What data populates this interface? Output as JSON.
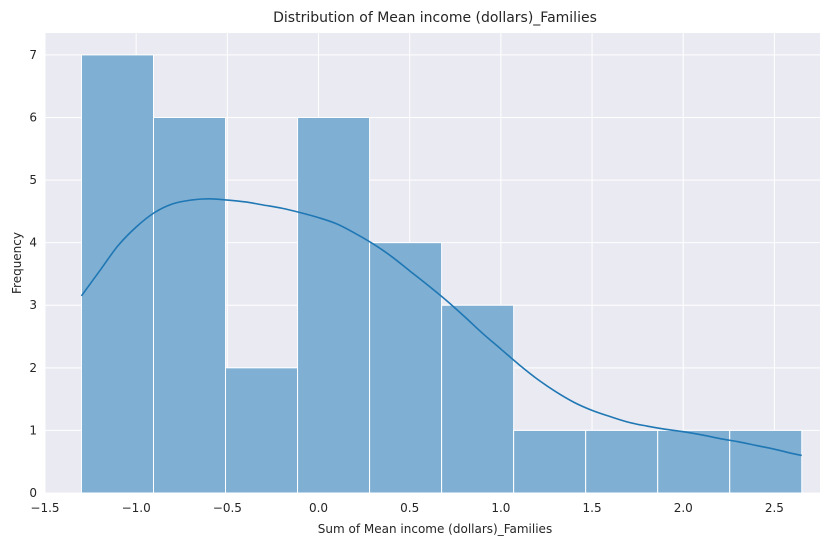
{
  "chart_data": {
    "type": "histogram",
    "title": "Distribution of Mean income (dollars)_Families",
    "xlabel": "Sum of Mean income (dollars)_Families",
    "ylabel": "Frequency",
    "xlim": [
      -1.5,
      2.75
    ],
    "ylim": [
      0,
      7.35
    ],
    "x_ticks": [
      -1.5,
      -1.0,
      -0.5,
      0.0,
      0.5,
      1.0,
      1.5,
      2.0,
      2.5
    ],
    "x_tick_labels": [
      "−1.5",
      "−1.0",
      "−0.5",
      "0.0",
      "0.5",
      "1.0",
      "1.5",
      "2.0",
      "2.5"
    ],
    "y_ticks": [
      0,
      1,
      2,
      3,
      4,
      5,
      6,
      7
    ],
    "y_tick_labels": [
      "0",
      "1",
      "2",
      "3",
      "4",
      "5",
      "6",
      "7"
    ],
    "bin_edges": [
      -1.3,
      -0.905,
      -0.51,
      -0.115,
      0.28,
      0.675,
      1.07,
      1.465,
      1.86,
      2.255,
      2.65
    ],
    "counts": [
      7,
      6,
      2,
      6,
      4,
      3,
      1,
      1,
      1,
      1
    ],
    "kde": {
      "x": [
        -1.3,
        -1.2,
        -1.1,
        -1.0,
        -0.9,
        -0.8,
        -0.7,
        -0.6,
        -0.5,
        -0.4,
        -0.3,
        -0.2,
        -0.1,
        0.0,
        0.1,
        0.2,
        0.3,
        0.4,
        0.5,
        0.6,
        0.7,
        0.8,
        0.9,
        1.0,
        1.1,
        1.2,
        1.3,
        1.4,
        1.5,
        1.6,
        1.7,
        1.8,
        1.9,
        2.0,
        2.1,
        2.2,
        2.3,
        2.4,
        2.5,
        2.6,
        2.65
      ],
      "y": [
        3.15,
        3.55,
        3.95,
        4.25,
        4.48,
        4.62,
        4.68,
        4.7,
        4.68,
        4.65,
        4.6,
        4.55,
        4.48,
        4.4,
        4.3,
        4.15,
        3.98,
        3.78,
        3.55,
        3.32,
        3.08,
        2.82,
        2.55,
        2.3,
        2.05,
        1.82,
        1.62,
        1.45,
        1.32,
        1.22,
        1.13,
        1.07,
        1.02,
        0.98,
        0.93,
        0.87,
        0.82,
        0.76,
        0.7,
        0.63,
        0.6
      ]
    },
    "grid": true,
    "legend": "none"
  },
  "colors": {
    "background": "#EAEAF2",
    "grid": "#FFFFFF",
    "bar_fill": "#7FAFD3",
    "bar_edge": "#FFFFFF",
    "kde_line": "#1F77B4",
    "text": "#262626"
  }
}
